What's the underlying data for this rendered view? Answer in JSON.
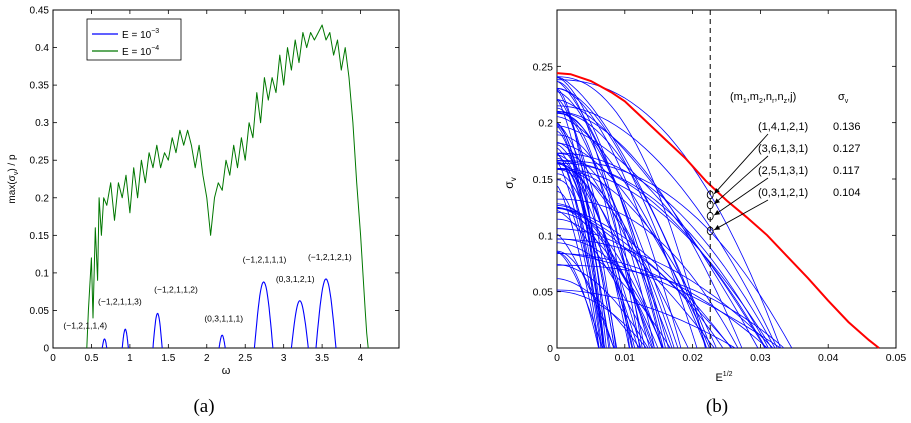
{
  "chart_data": [
    {
      "type": "line",
      "panel_caption": "(a)",
      "xlabel": "ω",
      "ylabel": "max(σ_v) / p",
      "xlim": [
        0,
        4.5
      ],
      "ylim": [
        0,
        0.45
      ],
      "xticks": [
        0,
        0.5,
        1,
        1.5,
        2,
        2.5,
        3,
        3.5,
        4
      ],
      "xtick_labels": [
        "0",
        "0.5",
        "1",
        "1.5",
        "2",
        "2.5",
        "3",
        "3.5",
        "4"
      ],
      "yticks": [
        0,
        0.05,
        0.1,
        0.15,
        0.2,
        0.25,
        0.3,
        0.35,
        0.4,
        0.45
      ],
      "ytick_labels": [
        "0",
        "0.05",
        "0.1",
        "0.15",
        "0.2",
        "0.25",
        "0.3",
        "0.35",
        "0.4",
        "0.45"
      ],
      "grid": false,
      "legend_position": "top-left",
      "legend": [
        {
          "base": "E = 10",
          "exp": "−3",
          "color": "#0000ff"
        },
        {
          "base": "E = 10",
          "exp": "−4",
          "color": "#007700"
        }
      ],
      "series": [
        {
          "name": "E = 10^-3",
          "color": "#0000ff",
          "lobes": [
            {
              "x0": 0.64,
              "x1": 0.7,
              "peak": 0.012
            },
            {
              "x0": 0.9,
              "x1": 0.98,
              "peak": 0.025
            },
            {
              "x0": 1.3,
              "x1": 1.42,
              "peak": 0.046
            },
            {
              "x0": 2.16,
              "x1": 2.24,
              "peak": 0.017
            },
            {
              "x0": 2.62,
              "x1": 2.86,
              "peak": 0.088
            },
            {
              "x0": 3.1,
              "x1": 3.32,
              "peak": 0.063
            },
            {
              "x0": 3.42,
              "x1": 3.68,
              "peak": 0.092
            }
          ]
        },
        {
          "name": "E = 10^-4",
          "color": "#007700",
          "x": [
            0.44,
            0.46,
            0.5,
            0.52,
            0.55,
            0.58,
            0.6,
            0.63,
            0.66,
            0.7,
            0.75,
            0.8,
            0.85,
            0.9,
            0.95,
            1.0,
            1.05,
            1.1,
            1.15,
            1.2,
            1.25,
            1.3,
            1.35,
            1.4,
            1.45,
            1.5,
            1.55,
            1.6,
            1.65,
            1.7,
            1.75,
            1.8,
            1.85,
            1.9,
            1.95,
            2.0,
            2.05,
            2.1,
            2.15,
            2.2,
            2.25,
            2.3,
            2.35,
            2.4,
            2.45,
            2.5,
            2.55,
            2.6,
            2.65,
            2.7,
            2.75,
            2.8,
            2.85,
            2.9,
            2.95,
            3.0,
            3.05,
            3.1,
            3.15,
            3.2,
            3.25,
            3.3,
            3.35,
            3.4,
            3.45,
            3.5,
            3.55,
            3.6,
            3.65,
            3.7,
            3.75,
            3.8,
            3.85,
            3.9,
            3.95,
            4.0,
            4.03,
            4.06,
            4.08,
            4.1
          ],
          "values": [
            0.0,
            0.05,
            0.12,
            0.04,
            0.16,
            0.09,
            0.2,
            0.15,
            0.2,
            0.19,
            0.22,
            0.17,
            0.22,
            0.2,
            0.23,
            0.18,
            0.24,
            0.2,
            0.25,
            0.22,
            0.26,
            0.24,
            0.27,
            0.24,
            0.26,
            0.25,
            0.28,
            0.26,
            0.29,
            0.27,
            0.29,
            0.27,
            0.24,
            0.27,
            0.23,
            0.2,
            0.15,
            0.2,
            0.22,
            0.21,
            0.25,
            0.23,
            0.27,
            0.24,
            0.28,
            0.25,
            0.3,
            0.28,
            0.34,
            0.3,
            0.36,
            0.33,
            0.36,
            0.34,
            0.39,
            0.35,
            0.4,
            0.37,
            0.41,
            0.38,
            0.42,
            0.4,
            0.42,
            0.41,
            0.42,
            0.43,
            0.41,
            0.42,
            0.39,
            0.41,
            0.37,
            0.4,
            0.36,
            0.3,
            0.22,
            0.15,
            0.1,
            0.05,
            0.02,
            0.0
          ]
        }
      ],
      "annotations": [
        {
          "text": "(−1,2,1,1,4)",
          "x": 0.42,
          "y": 0.026
        },
        {
          "text": "(−1,2,1,1,3)",
          "x": 0.87,
          "y": 0.058
        },
        {
          "text": "(−1,2,1,1,2)",
          "x": 1.6,
          "y": 0.074
        },
        {
          "text": "(0,3,1,1,1)",
          "x": 2.22,
          "y": 0.035
        },
        {
          "text": "(−1,2,1,1,1)",
          "x": 2.75,
          "y": 0.114
        },
        {
          "text": "(0,3,1,2,1)",
          "x": 3.15,
          "y": 0.088
        },
        {
          "text": "(−1,2,1,2,1)",
          "x": 3.6,
          "y": 0.117
        }
      ]
    },
    {
      "type": "line",
      "panel_caption": "(b)",
      "xlabel": "E^1/2",
      "ylabel": "σ_v",
      "xlim": [
        0,
        0.05
      ],
      "ylim": [
        0,
        0.3
      ],
      "xticks": [
        0,
        0.01,
        0.02,
        0.03,
        0.04,
        0.05
      ],
      "xtick_labels": [
        "0",
        "0.01",
        "0.02",
        "0.03",
        "0.04",
        "0.05"
      ],
      "yticks": [
        0,
        0.05,
        0.1,
        0.15,
        0.2,
        0.25
      ],
      "ytick_labels": [
        "0",
        "0.05",
        "0.1",
        "0.15",
        "0.2",
        "0.25"
      ],
      "grid": false,
      "vline_x": 0.0226,
      "envelope": {
        "color": "#ff0000",
        "x": [
          0,
          0.002,
          0.005,
          0.008,
          0.01,
          0.013,
          0.016,
          0.019,
          0.022,
          0.025,
          0.028,
          0.031,
          0.034,
          0.037,
          0.04,
          0.043,
          0.046,
          0.0475
        ],
        "values": [
          0.244,
          0.243,
          0.237,
          0.227,
          0.219,
          0.202,
          0.185,
          0.168,
          0.148,
          0.131,
          0.116,
          0.1,
          0.081,
          0.062,
          0.042,
          0.023,
          0.007,
          0.0
        ]
      },
      "family": {
        "color": "#0000ff",
        "count": 80,
        "y0_range": [
          0.04,
          0.242
        ],
        "x_end_range": [
          0.006,
          0.036
        ],
        "shape_range": [
          1.3,
          2.4
        ]
      },
      "table_header": {
        "mode": "(m",
        "mode_subs": [
          "1",
          "2",
          "r",
          "z"
        ],
        "mode_tail": ",j)",
        "value": "σ",
        "value_sub": "v"
      },
      "table_rows": [
        {
          "mode": "(1,4,1,2,1)",
          "value": "0.136",
          "y": 0.136
        },
        {
          "mode": "(3,6,1,3,1)",
          "value": "0.127",
          "y": 0.127
        },
        {
          "mode": "(2,5,1,3,1)",
          "value": "0.117",
          "y": 0.117
        },
        {
          "mode": "(0,3,1,2,1)",
          "value": "0.104",
          "y": 0.104
        }
      ]
    }
  ]
}
